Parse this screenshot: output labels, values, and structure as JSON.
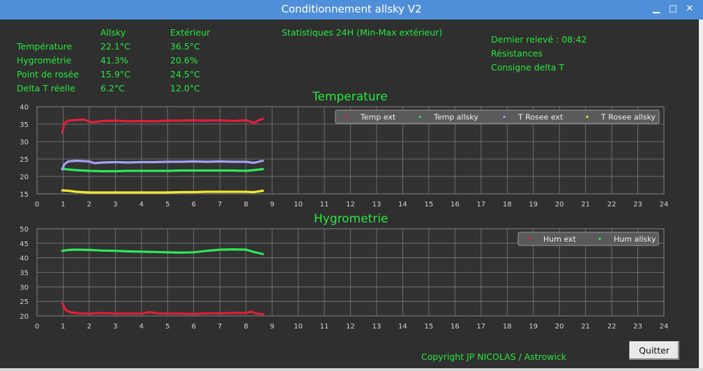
{
  "window": {
    "title": "Conditionnement allsky V2",
    "controls": {
      "minimize": "▁",
      "maximize": "□",
      "close": "✕"
    }
  },
  "readings": {
    "col_allsky": "Allsky",
    "col_ext": "Extérieur",
    "rows": [
      {
        "label": "Température",
        "allsky": "22.1°C",
        "ext": "36.5°C"
      },
      {
        "label": "Hygrométrie",
        "allsky": "41.3%",
        "ext": "20.6%"
      },
      {
        "label": "Point de rosée",
        "allsky": "15.9°C",
        "ext": "24.5°C"
      },
      {
        "label": "Delta T réelle",
        "allsky": "6.2°C",
        "ext": "12.0°C"
      }
    ]
  },
  "stats_label": "Statistiques 24H (Min-Max extérieur)",
  "status": {
    "last_reading": "Dernier relevé : 08:42",
    "resistances": "Résistances",
    "setpoint": "Consigne delta T"
  },
  "copyright": "Copyright JP NICOLAS / Astrowick",
  "quit_label": "Quitter",
  "colors": {
    "accent": "#27e83d",
    "background": "#2f2f2f",
    "titlebar": "#4f8fd9",
    "red": "#e0203a",
    "green": "#2ee85a",
    "lavender": "#a4a2f2",
    "yellow": "#f2ea2e"
  },
  "chart_data": [
    {
      "type": "line",
      "title": "Temperature",
      "xlim": [
        0,
        24
      ],
      "ylim": [
        15,
        40
      ],
      "xticks": [
        0,
        1,
        2,
        3,
        4,
        5,
        6,
        7,
        8,
        9,
        10,
        11,
        12,
        13,
        14,
        15,
        16,
        17,
        18,
        19,
        20,
        21,
        22,
        23,
        24
      ],
      "yticks": [
        15,
        20,
        25,
        30,
        35,
        40
      ],
      "grid": true,
      "legend_position": "top-right",
      "series": [
        {
          "name": "Temp ext",
          "color": "#e0203a",
          "x": [
            0.97,
            1.05,
            1.2,
            1.5,
            1.8,
            2.1,
            2.5,
            3,
            3.5,
            4,
            4.5,
            5,
            5.5,
            6,
            6.5,
            7,
            7.5,
            8,
            8.2,
            8.3,
            8.5,
            8.65
          ],
          "y": [
            32.5,
            35.3,
            36.0,
            36.2,
            36.3,
            35.5,
            35.9,
            36.0,
            35.8,
            35.9,
            35.8,
            36.0,
            36.0,
            36.1,
            36.0,
            36.1,
            35.9,
            36.1,
            35.7,
            35.2,
            36.2,
            36.5
          ]
        },
        {
          "name": "Temp allsky",
          "color": "#2ee85a",
          "x": [
            0.97,
            1.2,
            1.5,
            2,
            2.5,
            3,
            3.5,
            4,
            4.5,
            5,
            5.5,
            6,
            6.5,
            7,
            7.5,
            8,
            8.3,
            8.65
          ],
          "y": [
            22.2,
            22.0,
            21.8,
            21.6,
            21.5,
            21.5,
            21.6,
            21.6,
            21.6,
            21.6,
            21.7,
            21.7,
            21.7,
            21.7,
            21.7,
            21.6,
            21.8,
            22.1
          ]
        },
        {
          "name": "T Rosee ext",
          "color": "#a4a2f2",
          "x": [
            0.97,
            1.05,
            1.2,
            1.5,
            2,
            2.2,
            2.5,
            3,
            3.5,
            4,
            4.5,
            5,
            5.5,
            6,
            6.5,
            7,
            7.5,
            8,
            8.3,
            8.65
          ],
          "y": [
            22.0,
            23.5,
            24.3,
            24.5,
            24.3,
            23.8,
            24.0,
            24.1,
            24.0,
            24.1,
            24.1,
            24.2,
            24.2,
            24.3,
            24.2,
            24.3,
            24.2,
            24.2,
            23.9,
            24.5
          ]
        },
        {
          "name": "T Rosee allsky",
          "color": "#f2ea2e",
          "x": [
            0.97,
            1.2,
            1.5,
            2,
            2.5,
            3,
            3.5,
            4,
            4.5,
            5,
            5.5,
            6,
            6.5,
            7,
            7.5,
            8,
            8.3,
            8.65
          ],
          "y": [
            16.0,
            15.9,
            15.6,
            15.4,
            15.4,
            15.4,
            15.4,
            15.4,
            15.4,
            15.4,
            15.5,
            15.5,
            15.6,
            15.6,
            15.6,
            15.6,
            15.5,
            15.9
          ]
        }
      ]
    },
    {
      "type": "line",
      "title": "Hygrometrie",
      "xlim": [
        0,
        24
      ],
      "ylim": [
        20,
        50
      ],
      "xticks": [
        0,
        1,
        2,
        3,
        4,
        5,
        6,
        7,
        8,
        9,
        10,
        11,
        12,
        13,
        14,
        15,
        16,
        17,
        18,
        19,
        20,
        21,
        22,
        23,
        24
      ],
      "yticks": [
        20,
        25,
        30,
        35,
        40,
        45,
        50
      ],
      "grid": true,
      "legend_position": "top-right",
      "series": [
        {
          "name": "Hum ext",
          "color": "#e0203a",
          "x": [
            0.97,
            1.1,
            1.3,
            1.6,
            2,
            2.5,
            3,
            3.5,
            4,
            4.3,
            4.6,
            5,
            5.5,
            6,
            6.5,
            7,
            7.5,
            8,
            8.2,
            8.4,
            8.65
          ],
          "y": [
            24.3,
            22.0,
            21.2,
            20.9,
            20.8,
            21.0,
            20.8,
            20.8,
            20.8,
            21.3,
            20.9,
            20.8,
            20.8,
            20.7,
            20.9,
            20.9,
            21.0,
            21.0,
            21.5,
            20.8,
            20.6
          ]
        },
        {
          "name": "Hum allsky",
          "color": "#2ee85a",
          "x": [
            0.97,
            1.2,
            1.5,
            2,
            2.5,
            3,
            3.5,
            4,
            4.5,
            5,
            5.5,
            6,
            6.5,
            7,
            7.5,
            8,
            8.3,
            8.5,
            8.65
          ],
          "y": [
            42.4,
            42.7,
            42.8,
            42.7,
            42.5,
            42.4,
            42.2,
            42.1,
            42.0,
            41.9,
            41.8,
            41.9,
            42.4,
            42.8,
            42.9,
            42.8,
            42.0,
            41.6,
            41.3
          ]
        }
      ]
    }
  ]
}
